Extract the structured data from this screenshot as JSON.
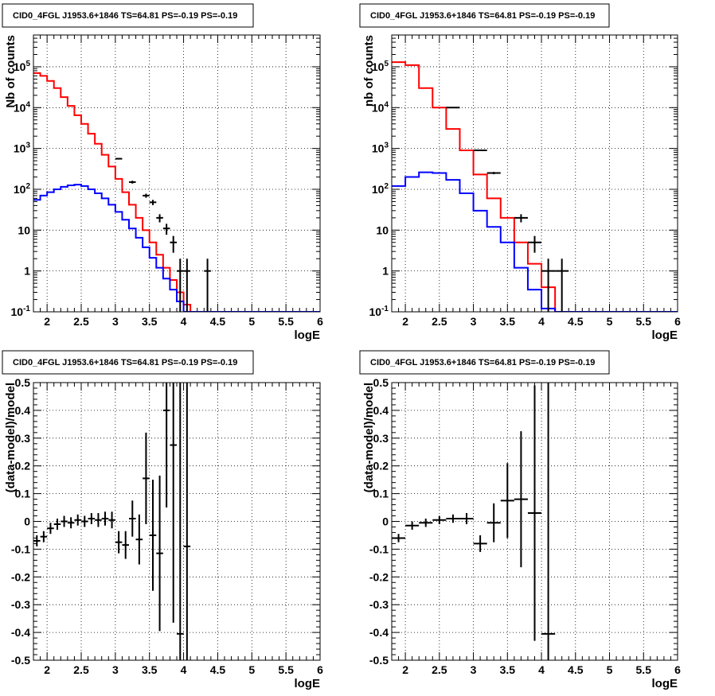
{
  "chart_data": [
    {
      "type": "line",
      "title": "CID0_4FGL J1953.6+1846 TS=64.81 PS=-0.19 PS=-0.19",
      "xlabel": "logE",
      "ylabel": "Nb of counts",
      "xlim": [
        1.8,
        6
      ],
      "ylim": [
        0.1,
        600000
      ],
      "yscale": "log",
      "grid": true,
      "x_ticks": [
        "2",
        "2.5",
        "3",
        "3.5",
        "4",
        "4.5",
        "5",
        "5.5",
        "6"
      ],
      "y_ticks": [
        "10^-1",
        "1",
        "10",
        "10^2",
        "10^3",
        "10^4",
        "10^5"
      ],
      "bin_edges": [
        1.8,
        1.9,
        2.0,
        2.1,
        2.2,
        2.3,
        2.4,
        2.5,
        2.6,
        2.7,
        2.8,
        2.9,
        3.0,
        3.1,
        3.2,
        3.3,
        3.4,
        3.5,
        3.6,
        3.7,
        3.8,
        3.9,
        4.0,
        4.1,
        4.2,
        4.3,
        4.4,
        4.5,
        4.6,
        4.7,
        4.8,
        4.9,
        5.0,
        5.1,
        5.2,
        5.3,
        5.4,
        5.5,
        5.6,
        5.7,
        5.8,
        5.9,
        6.0
      ],
      "series": [
        {
          "color": "#ff0000",
          "values": [
            70000,
            60000,
            45000,
            30000,
            18000,
            11000,
            6500,
            4000,
            2300,
            1300,
            700,
            360,
            180,
            85,
            42,
            20,
            10,
            5,
            2.5,
            1.2,
            0.6,
            0.3,
            0.15,
            0.1,
            0.1,
            0.1,
            0.1,
            0.1,
            0.1,
            0.1,
            0.1,
            0.1,
            0.1,
            0.1,
            0.1,
            0.1,
            0.1,
            0.1,
            0.1,
            0.1,
            0.1,
            0.1
          ]
        },
        {
          "color": "#0000ff",
          "values": [
            55,
            70,
            85,
            100,
            115,
            125,
            130,
            120,
            100,
            80,
            60,
            42,
            28,
            18,
            11,
            6.5,
            3.8,
            2.1,
            1.2,
            0.65,
            0.35,
            0.18,
            0.1,
            0.1,
            0.1,
            0.1,
            0.1,
            0.1,
            0.1,
            0.1,
            0.1,
            0.1,
            0.1,
            0.1,
            0.1,
            0.1,
            0.1,
            0.1,
            0.1,
            0.1,
            0.1,
            0.1
          ]
        }
      ],
      "data_points": [
        {
          "x": 3.05,
          "y": 560,
          "yerr": 24,
          "xerr": 0.05
        },
        {
          "x": 3.25,
          "y": 150,
          "yerr": 12,
          "xerr": 0.05
        },
        {
          "x": 3.45,
          "y": 70,
          "yerr": 8,
          "xerr": 0.05
        },
        {
          "x": 3.55,
          "y": 48,
          "yerr": 7,
          "xerr": 0.05
        },
        {
          "x": 3.65,
          "y": 20,
          "yerr": 4.5,
          "xerr": 0.05
        },
        {
          "x": 3.75,
          "y": 11,
          "yerr": 3.3,
          "xerr": 0.05
        },
        {
          "x": 3.85,
          "y": 5,
          "yerr": 2.2,
          "xerr": 0.05
        },
        {
          "x": 3.95,
          "y": 1,
          "yerr": 1,
          "xerr": 0.05
        },
        {
          "x": 4.05,
          "y": 1,
          "yerr": 1,
          "xerr": 0.05
        },
        {
          "x": 4.35,
          "y": 1,
          "yerr": 1,
          "xerr": 0.05
        }
      ]
    },
    {
      "type": "line",
      "title": "CID0_4FGL J1953.6+1846 TS=64.81 PS=-0.19 PS=-0.19",
      "xlabel": "logE",
      "ylabel": "nb of counts",
      "xlim": [
        1.8,
        6
      ],
      "ylim": [
        0.1,
        600000
      ],
      "yscale": "log",
      "grid": true,
      "x_ticks": [
        "2",
        "2.5",
        "3",
        "3.5",
        "4",
        "4.5",
        "5",
        "5.5",
        "6"
      ],
      "y_ticks": [
        "10^-1",
        "1",
        "10",
        "10^2",
        "10^3",
        "10^4",
        "10^5"
      ],
      "bin_edges": [
        1.8,
        2.0,
        2.2,
        2.4,
        2.6,
        2.8,
        3.0,
        3.2,
        3.4,
        3.6,
        3.8,
        4.0,
        4.2,
        4.4,
        4.6,
        4.8,
        5.0,
        5.2,
        5.4,
        5.6,
        5.8,
        6.0
      ],
      "series": [
        {
          "color": "#ff0000",
          "values": [
            130000,
            110000,
            30000,
            10000,
            3000,
            900,
            230,
            60,
            20,
            5,
            1.5,
            0.4,
            0.1,
            0.1,
            0.1,
            0.1,
            0.1,
            0.1,
            0.1,
            0.1,
            0.1
          ]
        },
        {
          "color": "#0000ff",
          "values": [
            120,
            200,
            260,
            250,
            170,
            80,
            30,
            12,
            5,
            1.2,
            0.35,
            0.12,
            0.1,
            0.1,
            0.1,
            0.1,
            0.1,
            0.1,
            0.1,
            0.1,
            0.1
          ]
        }
      ],
      "data_points": [
        {
          "x": 2.7,
          "y": 10000,
          "yerr": 100,
          "xerr": 0.1
        },
        {
          "x": 3.1,
          "y": 900,
          "yerr": 30,
          "xerr": 0.1
        },
        {
          "x": 3.3,
          "y": 250,
          "yerr": 16,
          "xerr": 0.1
        },
        {
          "x": 3.7,
          "y": 20,
          "yerr": 4.5,
          "xerr": 0.1
        },
        {
          "x": 3.9,
          "y": 5,
          "yerr": 2.2,
          "xerr": 0.1
        },
        {
          "x": 4.1,
          "y": 1,
          "yerr": 1,
          "xerr": 0.1
        },
        {
          "x": 4.3,
          "y": 1,
          "yerr": 1,
          "xerr": 0.1
        }
      ]
    },
    {
      "type": "scatter",
      "title": "CID0_4FGL J1953.6+1846 TS=64.81 PS=-0.19 PS=-0.19",
      "xlabel": "logE",
      "ylabel": "(data-model)/model",
      "xlim": [
        1.8,
        6
      ],
      "ylim": [
        -0.5,
        0.5
      ],
      "grid": true,
      "x_ticks": [
        "2",
        "2.5",
        "3",
        "3.5",
        "4",
        "4.5",
        "5",
        "5.5",
        "6"
      ],
      "y_ticks": [
        "-0.5",
        "-0.4",
        "-0.3",
        "-0.2",
        "-0.1",
        "0",
        "0.1",
        "0.2",
        "0.3",
        "0.4",
        "0.5"
      ],
      "points": [
        {
          "x": 1.85,
          "y": -0.07,
          "yerr": 0.02,
          "xerr": 0.05
        },
        {
          "x": 1.95,
          "y": -0.055,
          "yerr": 0.02,
          "xerr": 0.05
        },
        {
          "x": 2.05,
          "y": -0.025,
          "yerr": 0.02,
          "xerr": 0.05
        },
        {
          "x": 2.15,
          "y": -0.01,
          "yerr": 0.02,
          "xerr": 0.05
        },
        {
          "x": 2.25,
          "y": 0.0,
          "yerr": 0.02,
          "xerr": 0.05
        },
        {
          "x": 2.35,
          "y": -0.005,
          "yerr": 0.02,
          "xerr": 0.05
        },
        {
          "x": 2.45,
          "y": 0.005,
          "yerr": 0.02,
          "xerr": 0.05
        },
        {
          "x": 2.55,
          "y": 0.0,
          "yerr": 0.02,
          "xerr": 0.05
        },
        {
          "x": 2.65,
          "y": 0.01,
          "yerr": 0.02,
          "xerr": 0.05
        },
        {
          "x": 2.75,
          "y": 0.005,
          "yerr": 0.025,
          "xerr": 0.05
        },
        {
          "x": 2.85,
          "y": 0.01,
          "yerr": 0.025,
          "xerr": 0.05
        },
        {
          "x": 2.95,
          "y": 0.005,
          "yerr": 0.03,
          "xerr": 0.05
        },
        {
          "x": 3.05,
          "y": -0.075,
          "yerr": 0.04,
          "xerr": 0.05
        },
        {
          "x": 3.15,
          "y": -0.085,
          "yerr": 0.05,
          "xerr": 0.05
        },
        {
          "x": 3.25,
          "y": 0.01,
          "yerr": 0.065,
          "xerr": 0.05
        },
        {
          "x": 3.35,
          "y": -0.065,
          "yerr": 0.09,
          "xerr": 0.05
        },
        {
          "x": 3.45,
          "y": 0.155,
          "yerr": 0.165,
          "xerr": 0.05
        },
        {
          "x": 3.55,
          "y": -0.05,
          "yerr": 0.2,
          "xerr": 0.05
        },
        {
          "x": 3.65,
          "y": -0.115,
          "yerr": 0.28,
          "xerr": 0.05
        },
        {
          "x": 3.75,
          "y": 0.4,
          "yerr": 0.35,
          "xerr": 0.05
        },
        {
          "x": 3.85,
          "y": 0.275,
          "yerr": 0.64,
          "xerr": 0.05
        },
        {
          "x": 3.95,
          "y": -0.405,
          "yerr": 1.0,
          "xerr": 0.05
        },
        {
          "x": 4.05,
          "y": -0.09,
          "yerr": 1.0,
          "xerr": 0.05
        }
      ]
    },
    {
      "type": "scatter",
      "title": "CID0_4FGL J1953.6+1846 TS=64.81 PS=-0.19 PS=-0.19",
      "xlabel": "logE",
      "ylabel": "(data-model)/model",
      "xlim": [
        1.8,
        6
      ],
      "ylim": [
        -0.5,
        0.5
      ],
      "grid": true,
      "x_ticks": [
        "2",
        "2.5",
        "3",
        "3.5",
        "4",
        "4.5",
        "5",
        "5.5",
        "6"
      ],
      "y_ticks": [
        "-0.5",
        "-0.4",
        "-0.3",
        "-0.2",
        "-0.1",
        "0",
        "0.1",
        "0.2",
        "0.3",
        "0.4",
        "0.5"
      ],
      "points": [
        {
          "x": 1.9,
          "y": -0.06,
          "yerr": 0.015,
          "xerr": 0.1
        },
        {
          "x": 2.1,
          "y": -0.015,
          "yerr": 0.015,
          "xerr": 0.1
        },
        {
          "x": 2.3,
          "y": -0.005,
          "yerr": 0.015,
          "xerr": 0.1
        },
        {
          "x": 2.5,
          "y": 0.005,
          "yerr": 0.015,
          "xerr": 0.1
        },
        {
          "x": 2.7,
          "y": 0.01,
          "yerr": 0.015,
          "xerr": 0.1
        },
        {
          "x": 2.9,
          "y": 0.01,
          "yerr": 0.02,
          "xerr": 0.1
        },
        {
          "x": 3.1,
          "y": -0.08,
          "yerr": 0.03,
          "xerr": 0.1
        },
        {
          "x": 3.3,
          "y": -0.005,
          "yerr": 0.07,
          "xerr": 0.1
        },
        {
          "x": 3.5,
          "y": 0.075,
          "yerr": 0.135,
          "xerr": 0.1
        },
        {
          "x": 3.7,
          "y": 0.08,
          "yerr": 0.245,
          "xerr": 0.1
        },
        {
          "x": 3.9,
          "y": 0.03,
          "yerr": 0.46,
          "xerr": 0.1
        },
        {
          "x": 4.1,
          "y": -0.405,
          "yerr": 1.0,
          "xerr": 0.1
        }
      ]
    }
  ]
}
